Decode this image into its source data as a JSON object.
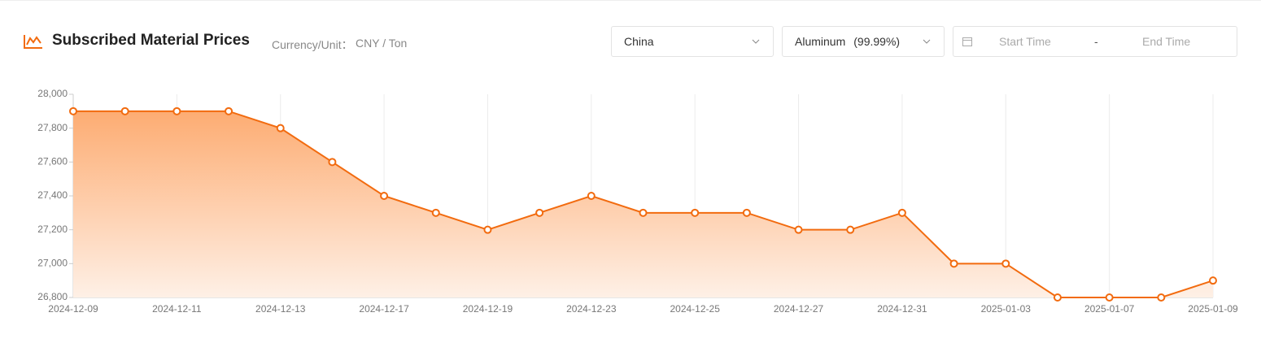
{
  "chart_data": {
    "type": "area-line",
    "title": "Subscribed Material Prices",
    "unit_label": "Currency/Unit：",
    "unit": "CNY / Ton",
    "categories": [
      "2024-12-09",
      null,
      "2024-12-11",
      null,
      "2024-12-13",
      null,
      "2024-12-17",
      null,
      "2024-12-19",
      null,
      "2024-12-23",
      null,
      "2024-12-25",
      null,
      "2024-12-27",
      null,
      "2024-12-31",
      null,
      "2025-01-03",
      null,
      "2025-01-07",
      null,
      "2025-01-09"
    ],
    "values": [
      27900,
      27900,
      27900,
      27900,
      27800,
      27600,
      27400,
      27300,
      27200,
      27300,
      27400,
      27300,
      27300,
      27300,
      27200,
      27200,
      27300,
      27000,
      27000,
      26800,
      26800,
      26800,
      26900
    ],
    "color": "#f26b0f",
    "ylim": [
      26800,
      28000
    ],
    "yticks": [
      {
        "value": 26800,
        "label": "26,800"
      },
      {
        "value": 27000,
        "label": "27,000"
      },
      {
        "value": 27200,
        "label": "27,200"
      },
      {
        "value": 27400,
        "label": "27,400"
      },
      {
        "value": 27600,
        "label": "27,600"
      },
      {
        "value": 27800,
        "label": "27,800"
      },
      {
        "value": 28000,
        "label": "28,000"
      }
    ],
    "grid": true
  },
  "filters": {
    "region": "China",
    "material": "Aluminum",
    "purity": "(99.99%)",
    "start": "Start Time",
    "separator": "-",
    "end": "End Time"
  }
}
